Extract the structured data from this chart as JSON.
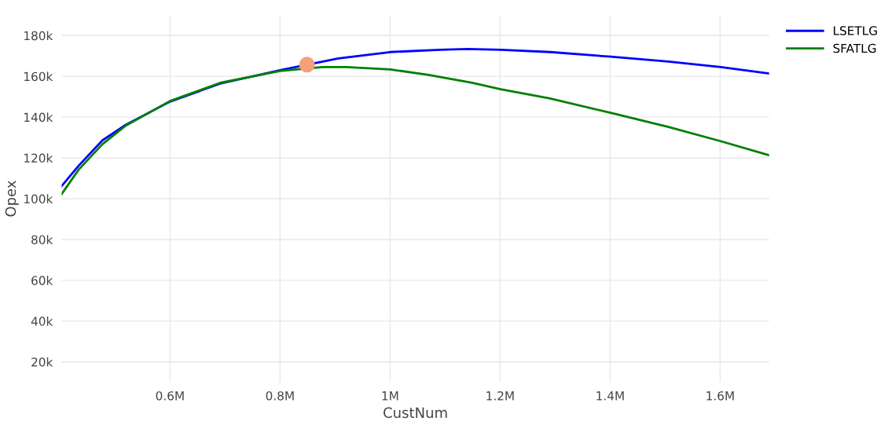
{
  "chart_data": {
    "type": "line",
    "xlabel": "CustNum",
    "ylabel": "Opex",
    "xlim": [
      403000,
      1689000
    ],
    "ylim": [
      10000,
      190000
    ],
    "xticks": [
      {
        "value": 600000,
        "label": "0.6M"
      },
      {
        "value": 800000,
        "label": "0.8M"
      },
      {
        "value": 1000000,
        "label": "1M"
      },
      {
        "value": 1200000,
        "label": "1.2M"
      },
      {
        "value": 1400000,
        "label": "1.4M"
      },
      {
        "value": 1600000,
        "label": "1.6M"
      }
    ],
    "yticks": [
      {
        "value": 20000,
        "label": "20k"
      },
      {
        "value": 40000,
        "label": "40k"
      },
      {
        "value": 60000,
        "label": "60k"
      },
      {
        "value": 80000,
        "label": "80k"
      },
      {
        "value": 100000,
        "label": "100k"
      },
      {
        "value": 120000,
        "label": "120k"
      },
      {
        "value": 140000,
        "label": "140k"
      },
      {
        "value": 160000,
        "label": "160k"
      },
      {
        "value": 180000,
        "label": "180k"
      }
    ],
    "grid": true,
    "legend": "top right",
    "marker": "none",
    "line_style": "solid",
    "series": [
      {
        "name": "LSETLG",
        "color": "#0000ff",
        "x": [
          403000,
          434000,
          477000,
          520000,
          600000,
          691000,
          800000,
          906000,
          1000000,
          1091000,
          1141000,
          1201000,
          1291000,
          1401000,
          1506000,
          1601000,
          1689000
        ],
        "values": [
          106200,
          116200,
          128600,
          136300,
          147600,
          156400,
          163000,
          168800,
          171900,
          173000,
          173400,
          173000,
          171900,
          169600,
          167200,
          164500,
          161400
        ]
      },
      {
        "name": "SFATLG",
        "color": "#008000",
        "x": [
          403000,
          434000,
          477000,
          520000,
          600000,
          691000,
          800000,
          877000,
          920000,
          1000000,
          1070000,
          1149000,
          1201000,
          1291000,
          1401000,
          1506000,
          1601000,
          1689000
        ],
        "values": [
          102300,
          114300,
          126700,
          135900,
          147900,
          156800,
          162600,
          164500,
          164500,
          163400,
          160700,
          156800,
          153700,
          149100,
          142100,
          135200,
          128200,
          121300
        ]
      },
      {
        "type": "scatter",
        "color": "#f4a07a",
        "marker": "circle",
        "x": [
          849000
        ],
        "values": [
          165700
        ]
      }
    ]
  }
}
